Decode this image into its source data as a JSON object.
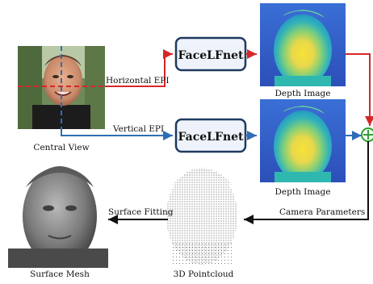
{
  "colors": {
    "horizontal_path": "#d62728",
    "vertical_path": "#2f6db5",
    "net_box_border": "#1f3a5f",
    "net_box_fill": "#eef3fb",
    "sum_node": "#2ca02c",
    "arrow_black": "#111111"
  },
  "input": {
    "caption": "Central View"
  },
  "branches": {
    "horizontal": {
      "label": "Horizontal EPI",
      "network": "FaceLFnet",
      "output_caption": "Depth Image"
    },
    "vertical": {
      "label": "Vertical EPI",
      "network": "FaceLFnet",
      "output_caption": "Depth Image"
    }
  },
  "fusion": {
    "symbol": "⊕",
    "label": "Camera Parameters"
  },
  "reconstruction": {
    "pointcloud_caption": "3D Pointcloud",
    "step_label": "Surface Fitting",
    "mesh_caption": "Surface Mesh"
  },
  "icons": [
    "face-photo",
    "depth-map-image",
    "pointcloud-image",
    "mesh-render-image",
    "plus-circle-icon"
  ]
}
